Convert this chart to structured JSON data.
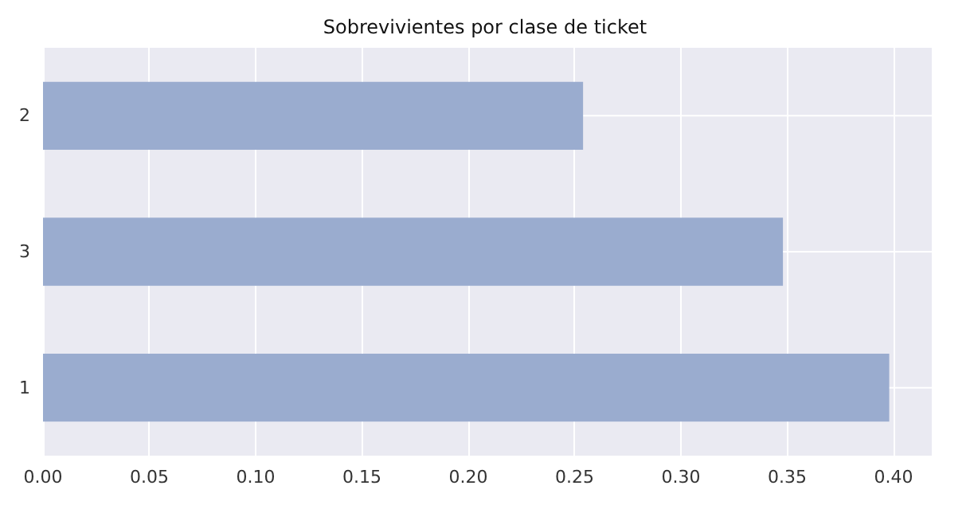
{
  "chart_data": {
    "type": "bar",
    "orientation": "horizontal",
    "title": "Sobrevivientes por clase de ticket",
    "categories": [
      "2",
      "3",
      "1"
    ],
    "values": [
      0.254,
      0.348,
      0.398
    ],
    "color": "#9aaccf",
    "xlim": [
      0,
      0.418
    ],
    "xticks": [
      {
        "value": 0,
        "label": "0.00"
      },
      {
        "value": 0.05,
        "label": "0.05"
      },
      {
        "value": 0.1,
        "label": "0.10"
      },
      {
        "value": 0.15,
        "label": "0.15"
      },
      {
        "value": 0.2,
        "label": "0.20"
      },
      {
        "value": 0.25,
        "label": "0.25"
      },
      {
        "value": 0.3,
        "label": "0.30"
      },
      {
        "value": 0.35,
        "label": "0.35"
      },
      {
        "value": 0.4,
        "label": "0.40"
      }
    ],
    "grid": true
  }
}
